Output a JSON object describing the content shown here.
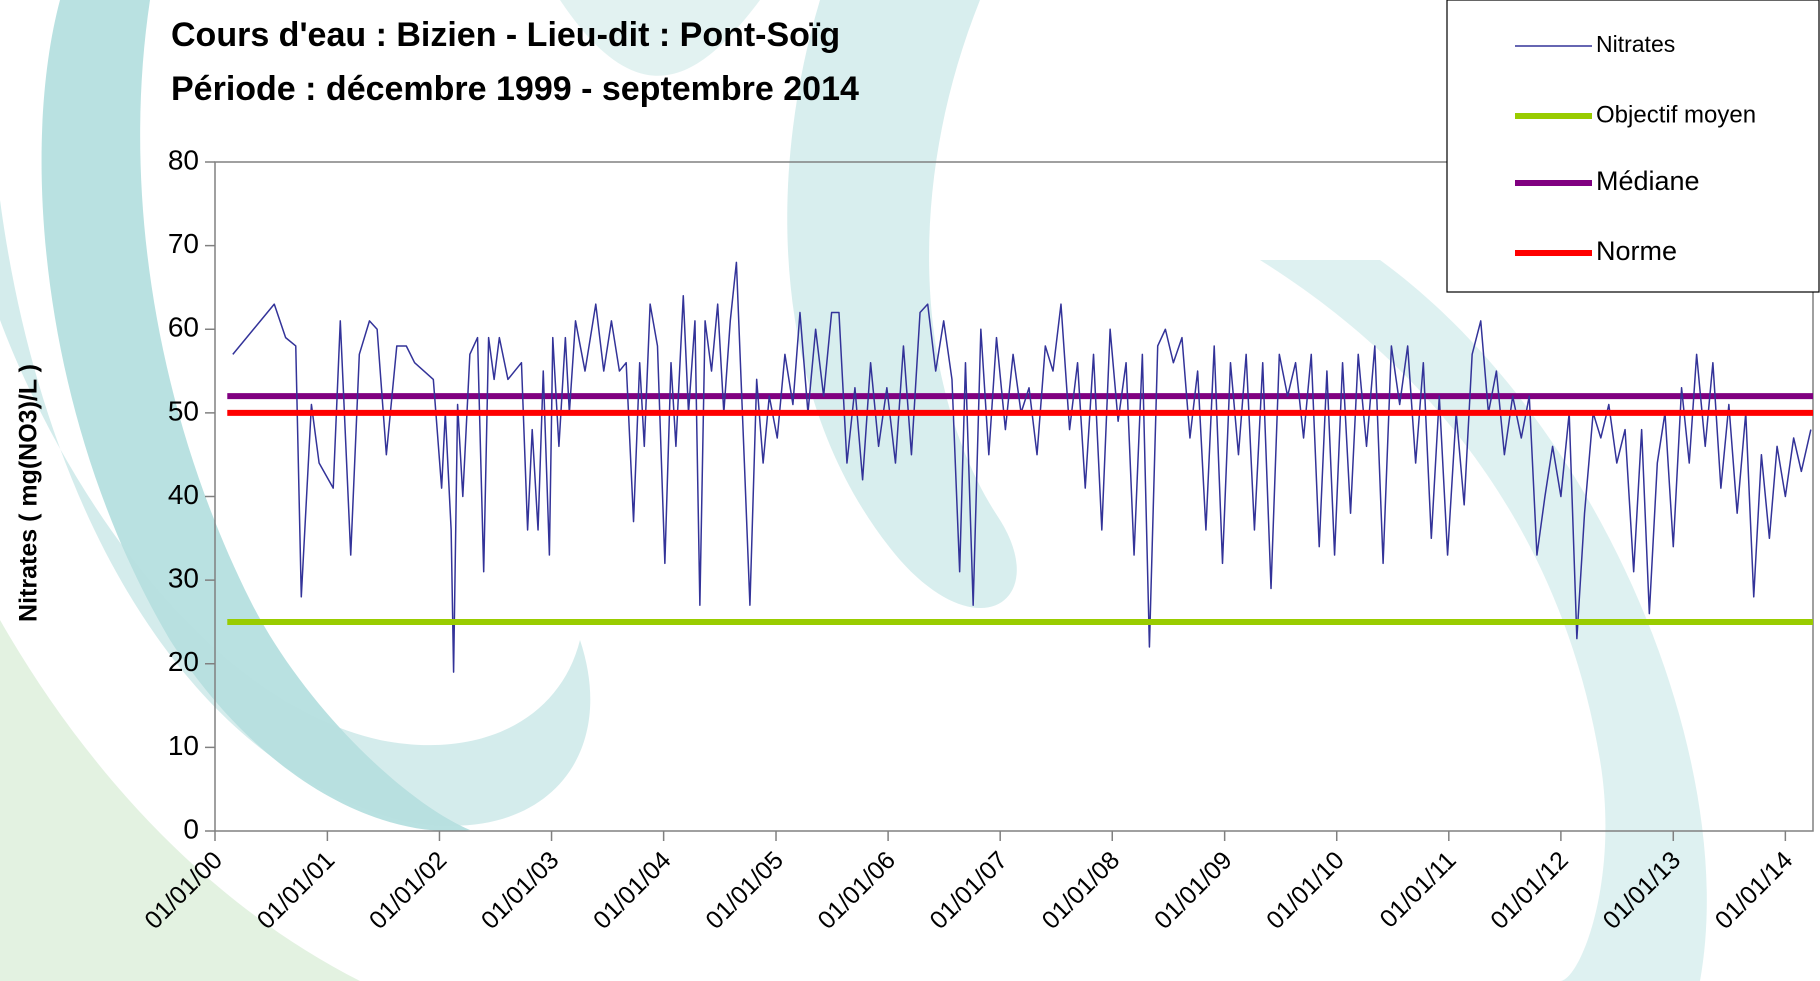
{
  "chart_data": {
    "type": "line",
    "title": "Cours d'eau : Bizien  -  Lieu-dit : Pont-Soïg",
    "subtitle": "Période : décembre 1999 - septembre 2014",
    "y_label": "Nitrates ( mg(NO3)/L )",
    "xlim": [
      "2000-01-01",
      "2014-04-01"
    ],
    "ylim": [
      0,
      80
    ],
    "yticks": [
      0,
      10,
      20,
      30,
      40,
      50,
      60,
      70,
      80
    ],
    "xticks": [
      {
        "value": "2000-01-01",
        "label": "01/01/00"
      },
      {
        "value": "2001-01-01",
        "label": "01/01/01"
      },
      {
        "value": "2002-01-01",
        "label": "01/01/02"
      },
      {
        "value": "2003-01-01",
        "label": "01/01/03"
      },
      {
        "value": "2004-01-01",
        "label": "01/01/04"
      },
      {
        "value": "2005-01-01",
        "label": "01/01/05"
      },
      {
        "value": "2006-01-01",
        "label": "01/01/06"
      },
      {
        "value": "2007-01-01",
        "label": "01/01/07"
      },
      {
        "value": "2008-01-01",
        "label": "01/01/08"
      },
      {
        "value": "2009-01-01",
        "label": "01/01/09"
      },
      {
        "value": "2010-01-01",
        "label": "01/01/10"
      },
      {
        "value": "2011-01-01",
        "label": "01/01/11"
      },
      {
        "value": "2012-01-01",
        "label": "01/01/12"
      },
      {
        "value": "2013-01-01",
        "label": "01/01/13"
      },
      {
        "value": "2014-01-01",
        "label": "01/01/14"
      }
    ],
    "legend": "top-right",
    "series": [
      {
        "name": "Nitrates",
        "color": "#333399",
        "linewidth": 1.5,
        "x": [
          "2000-02-28",
          "2000-07-12",
          "2000-08-18",
          "2000-09-20",
          "2000-10-08",
          "2000-11-10",
          "2000-12-05",
          "2001-01-20",
          "2001-02-12",
          "2001-03-18",
          "2001-04-15",
          "2001-05-18",
          "2001-06-12",
          "2001-07-12",
          "2001-08-15",
          "2001-09-15",
          "2001-10-12",
          "2001-12-12",
          "2002-01-08",
          "2002-01-20",
          "2002-02-08",
          "2002-02-16",
          "2002-03-01",
          "2002-03-18",
          "2002-04-10",
          "2002-05-05",
          "2002-05-25",
          "2002-06-10",
          "2002-06-28",
          "2002-07-15",
          "2002-08-12",
          "2002-09-25",
          "2002-10-15",
          "2002-10-30",
          "2002-11-18",
          "2002-12-05",
          "2002-12-25",
          "2003-01-05",
          "2003-01-25",
          "2003-02-15",
          "2003-02-28",
          "2003-03-20",
          "2003-04-20",
          "2003-05-25",
          "2003-06-20",
          "2003-07-15",
          "2003-08-10",
          "2003-09-01",
          "2003-09-25",
          "2003-10-15",
          "2003-10-30",
          "2003-11-18",
          "2003-12-12",
          "2004-01-05",
          "2004-01-25",
          "2004-02-10",
          "2004-03-05",
          "2004-03-22",
          "2004-04-12",
          "2004-04-28",
          "2004-05-15",
          "2004-06-05",
          "2004-06-25",
          "2004-07-15",
          "2004-08-05",
          "2004-08-25",
          "2004-09-20",
          "2004-10-08",
          "2004-10-30",
          "2004-11-20",
          "2004-12-10",
          "2005-01-05",
          "2005-01-30",
          "2005-02-25",
          "2005-03-20",
          "2005-04-15",
          "2005-05-10",
          "2005-06-05",
          "2005-07-01",
          "2005-07-25",
          "2005-08-20",
          "2005-09-15",
          "2005-10-10",
          "2005-11-05",
          "2005-12-01",
          "2005-12-28",
          "2006-01-25",
          "2006-02-20",
          "2006-03-18",
          "2006-04-15",
          "2006-05-10",
          "2006-06-05",
          "2006-07-01",
          "2006-07-28",
          "2006-08-22",
          "2006-09-10",
          "2006-10-05",
          "2006-10-30",
          "2006-11-25",
          "2006-12-20",
          "2007-01-18",
          "2007-02-12",
          "2007-03-10",
          "2007-04-05",
          "2007-05-01",
          "2007-05-28",
          "2007-06-22",
          "2007-07-18",
          "2007-08-15",
          "2007-09-10",
          "2007-10-05",
          "2007-11-01",
          "2007-11-28",
          "2007-12-25",
          "2008-01-20",
          "2008-02-15",
          "2008-03-12",
          "2008-04-08",
          "2008-05-01",
          "2008-05-28",
          "2008-06-22",
          "2008-07-18",
          "2008-08-15",
          "2008-09-10",
          "2008-10-05",
          "2008-11-01",
          "2008-11-28",
          "2008-12-25",
          "2009-01-20",
          "2009-02-15",
          "2009-03-12",
          "2009-04-08",
          "2009-05-05",
          "2009-06-01",
          "2009-06-28",
          "2009-07-25",
          "2009-08-20",
          "2009-09-15",
          "2009-10-10",
          "2009-11-05",
          "2009-11-30",
          "2009-12-25",
          "2010-01-20",
          "2010-02-15",
          "2010-03-12",
          "2010-04-08",
          "2010-05-05",
          "2010-06-01",
          "2010-06-28",
          "2010-07-25",
          "2010-08-20",
          "2010-09-15",
          "2010-10-10",
          "2010-11-05",
          "2010-12-01",
          "2010-12-28",
          "2011-01-25",
          "2011-02-20",
          "2011-03-18",
          "2011-04-15",
          "2011-05-10",
          "2011-06-05",
          "2011-07-01",
          "2011-07-28",
          "2011-08-25",
          "2011-09-20",
          "2011-10-15",
          "2011-11-10",
          "2011-12-05",
          "2012-01-01",
          "2012-01-28",
          "2012-02-22",
          "2012-03-18",
          "2012-04-15",
          "2012-05-10",
          "2012-06-05",
          "2012-07-01",
          "2012-07-28",
          "2012-08-25",
          "2012-09-20",
          "2012-10-15",
          "2012-11-10",
          "2012-12-05",
          "2013-01-01",
          "2013-01-28",
          "2013-02-22",
          "2013-03-18",
          "2013-04-15",
          "2013-05-10",
          "2013-06-05",
          "2013-07-01",
          "2013-07-28",
          "2013-08-25",
          "2013-09-20",
          "2013-10-15",
          "2013-11-10",
          "2013-12-05",
          "2014-01-01",
          "2014-01-28",
          "2014-02-22",
          "2014-03-25"
        ],
        "values": [
          57,
          63,
          59,
          58,
          28,
          51,
          44,
          41,
          61,
          33,
          57,
          61,
          60,
          45,
          58,
          58,
          56,
          54,
          41,
          50,
          36,
          19,
          51,
          40,
          57,
          59,
          31,
          59,
          54,
          59,
          54,
          56,
          36,
          48,
          36,
          55,
          33,
          59,
          46,
          59,
          50,
          61,
          55,
          63,
          55,
          61,
          55,
          56,
          37,
          56,
          46,
          63,
          58,
          32,
          56,
          46,
          64,
          50,
          61,
          27,
          61,
          55,
          63,
          50,
          61,
          68,
          44,
          27,
          54,
          44,
          52,
          47,
          57,
          51,
          62,
          50,
          60,
          52,
          62,
          62,
          44,
          53,
          42,
          56,
          46,
          53,
          44,
          58,
          45,
          62,
          63,
          55,
          61,
          54,
          31,
          56,
          27,
          60,
          45,
          59,
          48,
          57,
          50,
          53,
          45,
          58,
          55,
          63,
          48,
          56,
          41,
          57,
          36,
          60,
          49,
          56,
          33,
          57,
          22,
          58,
          60,
          56,
          59,
          47,
          55,
          36,
          58,
          32,
          56,
          45,
          57,
          36,
          56,
          29,
          57,
          52,
          56,
          47,
          57,
          34,
          55,
          33,
          56,
          38,
          57,
          46,
          58,
          32,
          58,
          51,
          58,
          44,
          56,
          35,
          52,
          33,
          50,
          39,
          57,
          61,
          50,
          55,
          45,
          52,
          47,
          52,
          33,
          40,
          46,
          40,
          50,
          23,
          38,
          50,
          47,
          51,
          44,
          48,
          31,
          48,
          26,
          44,
          50,
          34,
          53,
          44,
          57,
          46,
          56,
          41,
          51,
          38,
          50,
          28,
          45,
          35,
          46,
          40,
          47,
          43,
          48
        ]
      },
      {
        "name": "Objectif moyen",
        "color": "#99cc00",
        "linewidth": 6,
        "x": [
          "2000-02-10",
          "2014-04-01"
        ],
        "values": [
          25,
          25
        ]
      },
      {
        "name": "Médiane",
        "color": "#800080",
        "linewidth": 6,
        "x": [
          "2000-02-10",
          "2014-04-01"
        ],
        "values": [
          52,
          52
        ]
      },
      {
        "name": "Norme",
        "color": "#ff0000",
        "linewidth": 6,
        "x": [
          "2000-02-10",
          "2014-04-01"
        ],
        "values": [
          50,
          50
        ]
      }
    ]
  }
}
